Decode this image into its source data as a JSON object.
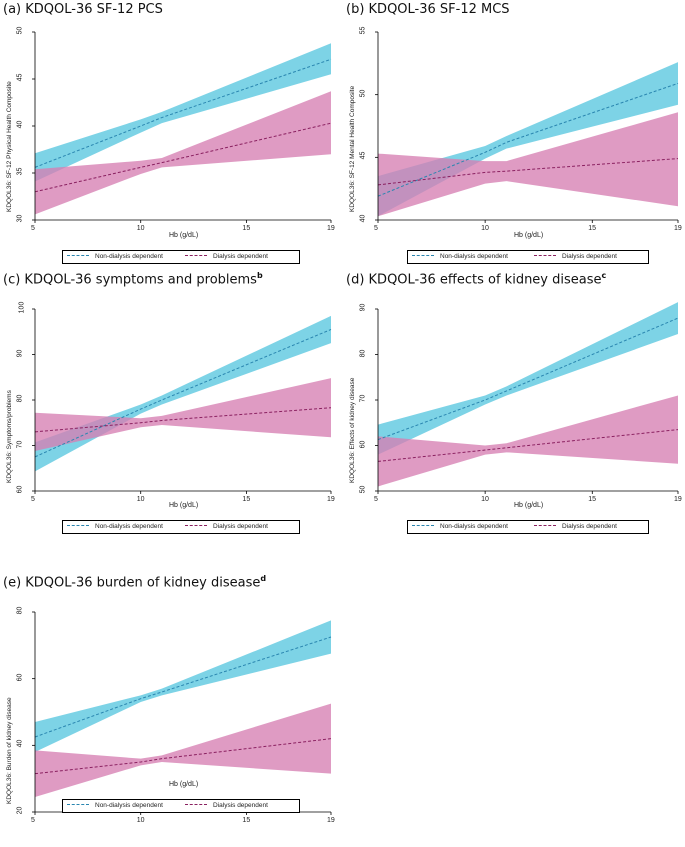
{
  "colors": {
    "non_dialysis_band": "#7dd3e6",
    "non_dialysis_line": "#2a86b0",
    "dialysis_band": "#d67fb2",
    "dialysis_line": "#8a2060",
    "overlap_band": "#8e86bd"
  },
  "chart_data": [
    {
      "panel_id": "a",
      "type": "line",
      "title": "(a) KDQOL-36 SF-12 PCS",
      "title_superscript": "",
      "xlabel": "Hb (g/dL)",
      "ylabel": "KDQOL36: SF-12 Physical Health Composite",
      "xlim": [
        5,
        19
      ],
      "ylim": [
        30,
        50
      ],
      "x_ticks": [
        5,
        10,
        15,
        19
      ],
      "y_ticks": [
        30,
        35,
        40,
        45,
        50
      ],
      "legend": [
        "Non-dialysis dependent",
        "Dialysis dependent"
      ],
      "series": [
        {
          "name": "Non-dialysis dependent",
          "x": [
            5,
            10,
            11,
            19
          ],
          "y": [
            35.6,
            40.0,
            40.9,
            47.1
          ],
          "lower": [
            34.1,
            39.3,
            40.3,
            45.5
          ],
          "upper": [
            37.1,
            40.7,
            41.5,
            48.8
          ]
        },
        {
          "name": "Dialysis dependent",
          "x": [
            5,
            10,
            11,
            19
          ],
          "y": [
            33.0,
            35.6,
            36.1,
            40.3
          ],
          "lower": [
            30.6,
            34.9,
            35.6,
            37.0
          ],
          "upper": [
            35.4,
            36.3,
            36.6,
            43.7
          ]
        }
      ]
    },
    {
      "panel_id": "b",
      "type": "line",
      "title": "(b) KDQOL-36 SF-12 MCS",
      "title_superscript": "",
      "xlabel": "Hb (g/dL)",
      "ylabel": "KDQOL36: SF-12 Mental Health Composite",
      "xlim": [
        5,
        19
      ],
      "ylim": [
        40,
        55
      ],
      "x_ticks": [
        5,
        10,
        15,
        19
      ],
      "y_ticks": [
        40,
        45,
        50,
        55
      ],
      "legend": [
        "Non-dialysis dependent",
        "Dialysis dependent"
      ],
      "series": [
        {
          "name": "Non-dialysis dependent",
          "x": [
            5,
            10,
            11,
            19
          ],
          "y": [
            41.9,
            45.4,
            46.2,
            50.9
          ],
          "lower": [
            40.3,
            44.9,
            45.7,
            49.2
          ],
          "upper": [
            43.5,
            45.9,
            46.7,
            52.6
          ]
        },
        {
          "name": "Dialysis dependent",
          "x": [
            5,
            10,
            11,
            19
          ],
          "y": [
            42.8,
            43.8,
            43.9,
            44.9
          ],
          "lower": [
            40.3,
            42.9,
            43.1,
            41.1
          ],
          "upper": [
            45.3,
            44.7,
            44.7,
            48.6
          ]
        }
      ]
    },
    {
      "panel_id": "c",
      "type": "line",
      "title": "(c) KDQOL-36 symptoms and problems",
      "title_superscript": "b",
      "xlabel": "Hb (g/dL)",
      "ylabel": "KDQOL36: Symptoms/problems",
      "xlim": [
        5,
        19
      ],
      "ylim": [
        60,
        100
      ],
      "x_ticks": [
        5,
        10,
        15,
        19
      ],
      "y_ticks": [
        60,
        70,
        80,
        90,
        100
      ],
      "legend": [
        "Non-dialysis dependent",
        "Dialysis dependent"
      ],
      "series": [
        {
          "name": "Non-dialysis dependent",
          "x": [
            5,
            10,
            11,
            19
          ],
          "y": [
            67.5,
            78.0,
            80.0,
            95.5
          ],
          "lower": [
            64.3,
            77.0,
            79.0,
            92.5
          ],
          "upper": [
            70.7,
            79.0,
            81.0,
            98.5
          ]
        },
        {
          "name": "Dialysis dependent",
          "x": [
            5,
            10,
            11,
            19
          ],
          "y": [
            73.0,
            75.0,
            75.5,
            78.3
          ],
          "lower": [
            68.8,
            74.0,
            74.5,
            71.8
          ],
          "upper": [
            77.2,
            76.0,
            76.5,
            84.8
          ]
        }
      ]
    },
    {
      "panel_id": "d",
      "type": "line",
      "title": "(d) KDQOL-36 effects of kidney disease",
      "title_superscript": "c",
      "xlabel": "Hb (g/dL)",
      "ylabel": "KDQOL36: Effects of kidney disease",
      "xlim": [
        5,
        19
      ],
      "ylim": [
        50,
        90
      ],
      "x_ticks": [
        5,
        10,
        15,
        19
      ],
      "y_ticks": [
        50,
        60,
        70,
        80,
        90
      ],
      "legend": [
        "Non-dialysis dependent",
        "Dialysis dependent"
      ],
      "series": [
        {
          "name": "Non-dialysis dependent",
          "x": [
            5,
            10,
            11,
            19
          ],
          "y": [
            61.3,
            70.0,
            72.0,
            88.0
          ],
          "lower": [
            58.0,
            69.0,
            71.0,
            84.5
          ],
          "upper": [
            64.6,
            71.0,
            73.0,
            91.5
          ]
        },
        {
          "name": "Dialysis dependent",
          "x": [
            5,
            10,
            11,
            19
          ],
          "y": [
            56.5,
            59.0,
            59.5,
            63.5
          ],
          "lower": [
            51.0,
            58.0,
            58.5,
            56.0
          ],
          "upper": [
            62.0,
            60.0,
            60.5,
            71.0
          ]
        }
      ]
    },
    {
      "panel_id": "e",
      "type": "line",
      "title": "(e) KDQOL-36 burden of kidney disease",
      "title_superscript": "d",
      "xlabel": "Hb (g/dL)",
      "ylabel": "KDQOL36: Burden of kidney disease",
      "xlim": [
        5,
        19
      ],
      "ylim": [
        20,
        80
      ],
      "x_ticks": [
        5,
        10,
        15,
        19
      ],
      "y_ticks": [
        20,
        40,
        60,
        80
      ],
      "legend": [
        "Non-dialysis dependent",
        "Dialysis dependent"
      ],
      "series": [
        {
          "name": "Non-dialysis dependent",
          "x": [
            5,
            10,
            11,
            19
          ],
          "y": [
            42.5,
            54.0,
            56.0,
            72.5
          ],
          "lower": [
            38.0,
            53.0,
            55.0,
            67.5
          ],
          "upper": [
            47.0,
            55.0,
            57.0,
            77.5
          ]
        },
        {
          "name": "Dialysis dependent",
          "x": [
            5,
            10,
            11,
            19
          ],
          "y": [
            31.5,
            35.0,
            36.0,
            42.0
          ],
          "lower": [
            24.5,
            34.0,
            35.0,
            31.5
          ],
          "upper": [
            38.5,
            36.0,
            37.0,
            52.5
          ]
        }
      ]
    }
  ]
}
